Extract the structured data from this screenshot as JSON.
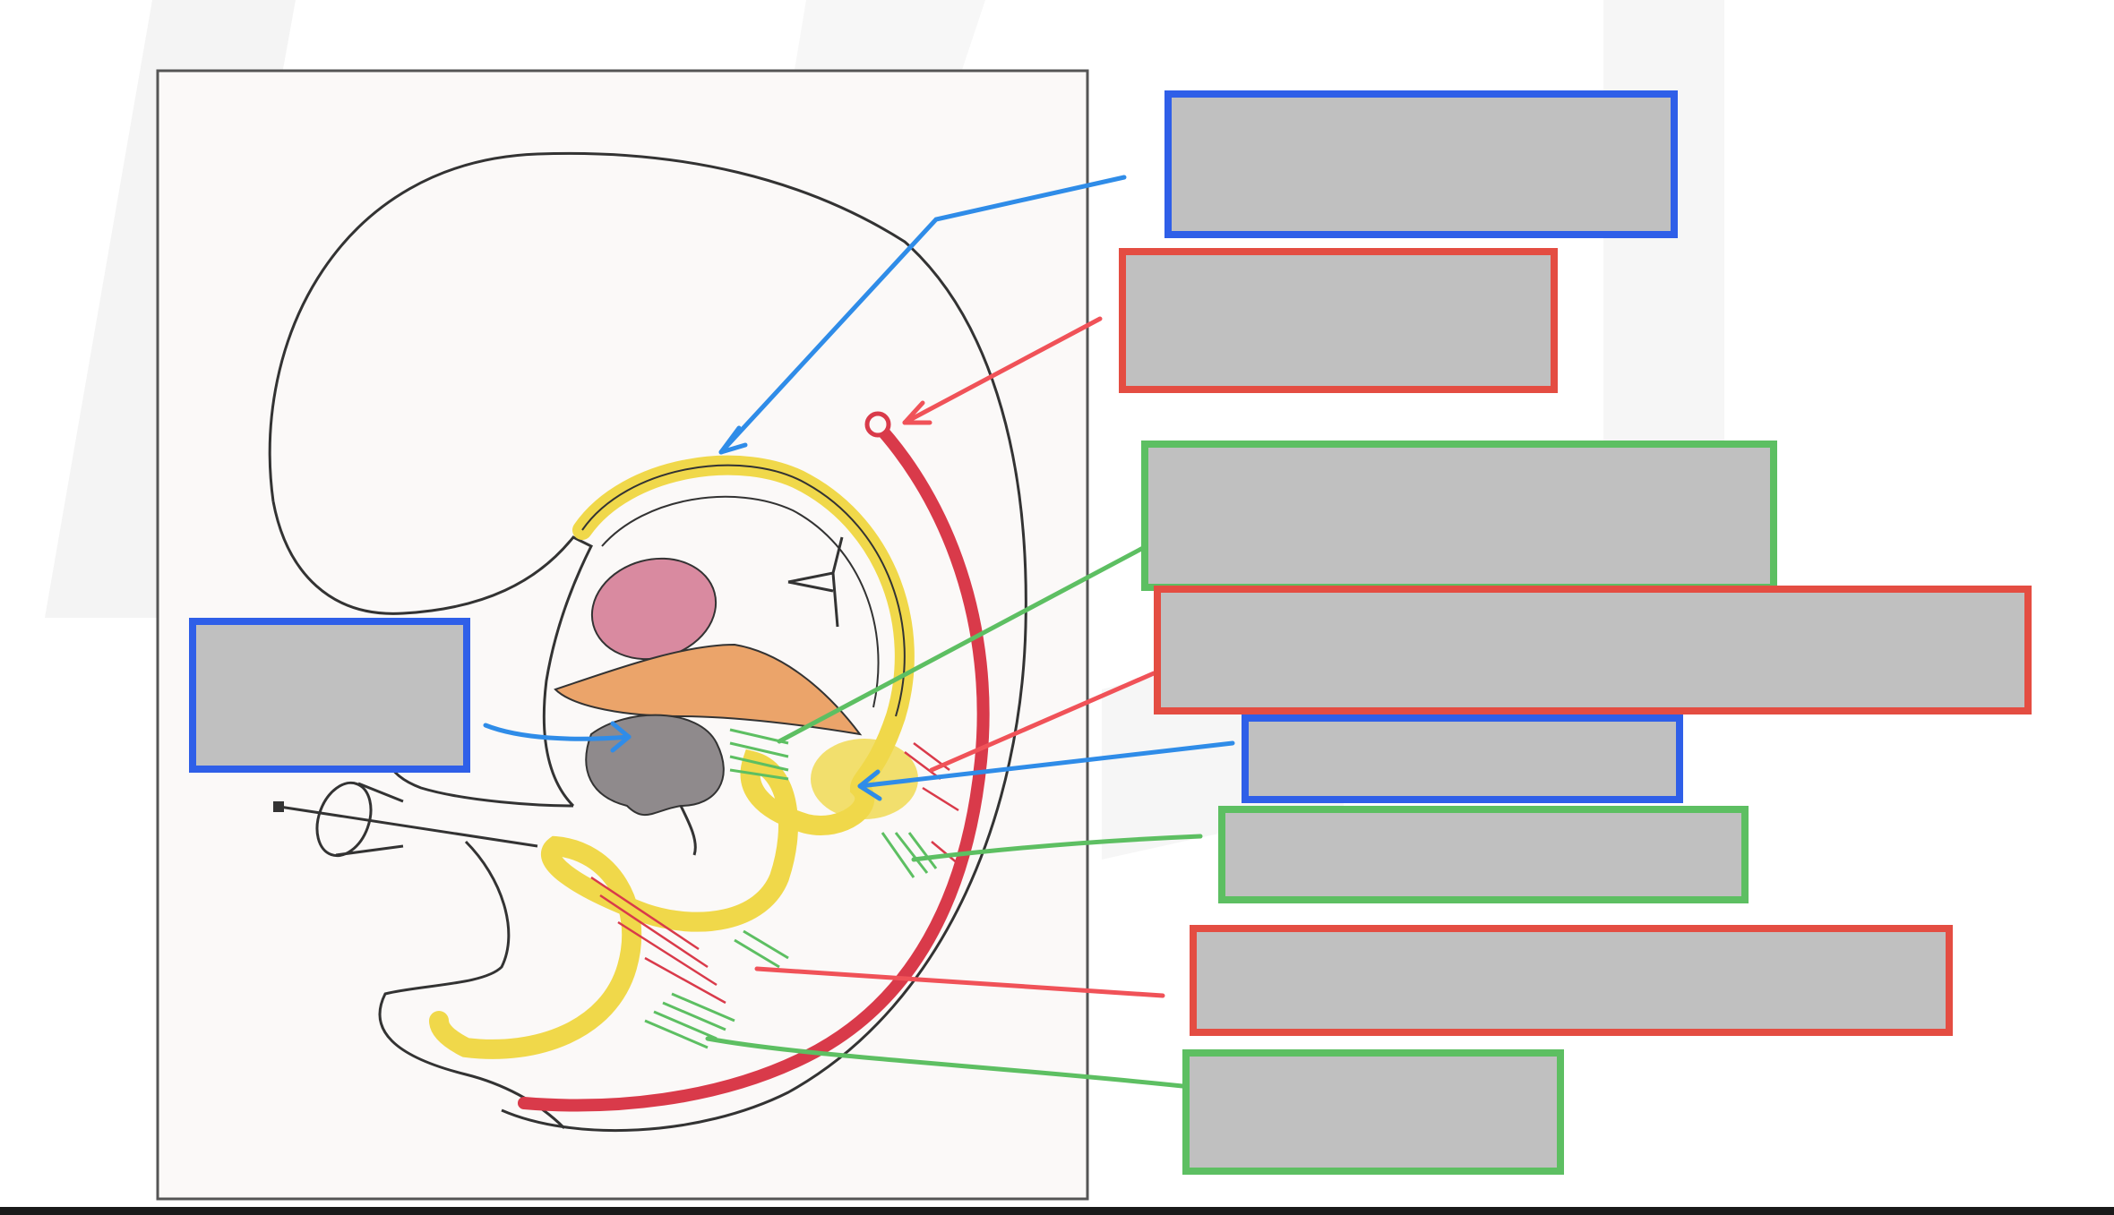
{
  "diagram": {
    "colors": {
      "blue": "#2f5fe8",
      "red": "#e44d42",
      "green": "#5dbf62",
      "neural_yellow": "#f0d84a",
      "vessel_red": "#d93a4a",
      "blank_fill": "#c0c0c0"
    },
    "label_boxes": [
      {
        "id": "label-box-1",
        "color": "blue",
        "text": ""
      },
      {
        "id": "label-box-2",
        "color": "red",
        "text": ""
      },
      {
        "id": "label-box-3",
        "color": "green",
        "text": ""
      },
      {
        "id": "label-box-4",
        "color": "red",
        "text": ""
      },
      {
        "id": "label-box-5",
        "color": "blue",
        "text": ""
      },
      {
        "id": "label-box-6",
        "color": "green",
        "text": ""
      },
      {
        "id": "label-box-7",
        "color": "red",
        "text": ""
      },
      {
        "id": "label-box-8",
        "color": "green",
        "text": ""
      },
      {
        "id": "label-box-9",
        "color": "blue",
        "text": ""
      }
    ]
  }
}
